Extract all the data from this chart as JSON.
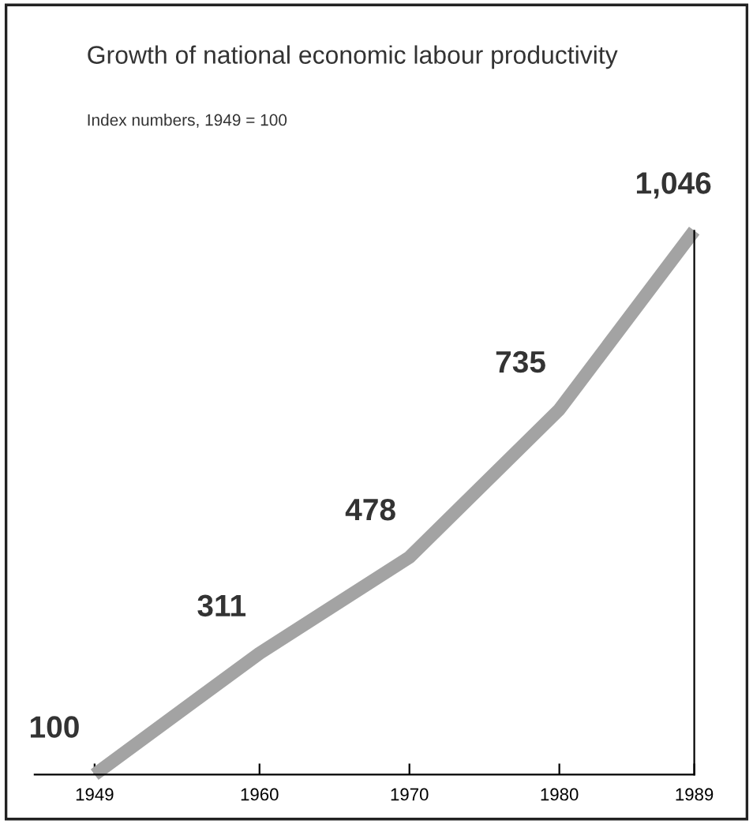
{
  "chart_data": {
    "type": "line",
    "title": "Growth of national economic labour productivity",
    "subtitle": "Index numbers, 1949 = 100",
    "x": [
      1949,
      1960,
      1970,
      1980,
      1989
    ],
    "series": [
      {
        "color": "#a3a3a3",
        "values": [
          100,
          311,
          478,
          735,
          1046
        ],
        "value_labels": [
          "100",
          "311",
          "478",
          "735",
          "1,046"
        ]
      }
    ],
    "xlim": [
      1945,
      1989
    ],
    "xticks": [
      1949,
      1960,
      1970,
      1980,
      1989
    ],
    "ylim": [
      100,
      1046
    ],
    "tick_labels": "x",
    "grid": false,
    "legend": false,
    "marker": "none",
    "line_style": "solid"
  }
}
